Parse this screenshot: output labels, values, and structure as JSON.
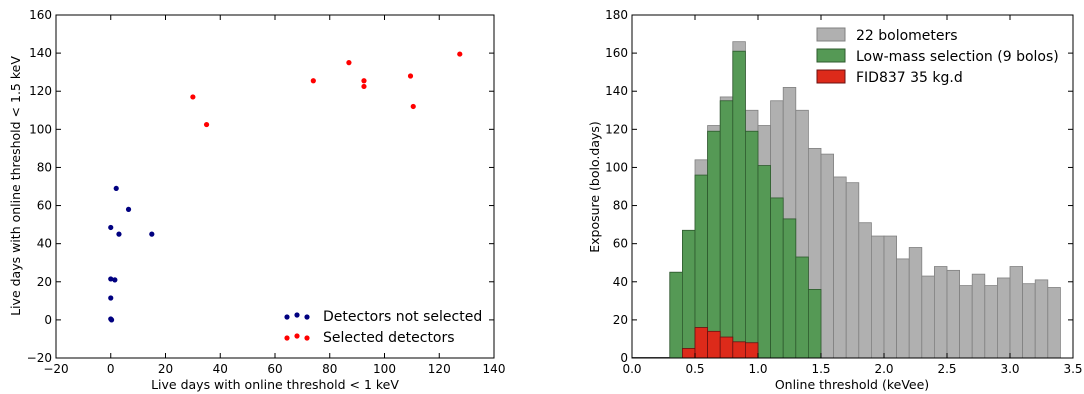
{
  "chart_data": [
    {
      "type": "scatter",
      "xlabel": "Live days with online threshold < 1 keV",
      "ylabel": "Live days with online threshold < 1.5 keV",
      "xlim": [
        -20,
        140
      ],
      "ylim": [
        -20,
        160
      ],
      "xticks": [
        -20,
        0,
        20,
        40,
        60,
        80,
        100,
        120,
        140
      ],
      "yticks": [
        -20,
        0,
        20,
        40,
        60,
        80,
        100,
        120,
        140,
        160
      ],
      "xtick_labels": [
        "−20",
        "0",
        "20",
        "40",
        "60",
        "80",
        "100",
        "120",
        "140"
      ],
      "ytick_labels": [
        "−20",
        "0",
        "20",
        "40",
        "60",
        "80",
        "100",
        "120",
        "140",
        "160"
      ],
      "legend_position": "bottom-right",
      "series": [
        {
          "name": "Detectors not selected",
          "color": "#000080",
          "points": [
            [
              2,
              69
            ],
            [
              6.5,
              58
            ],
            [
              0,
              48.5
            ],
            [
              3,
              45
            ],
            [
              15,
              45
            ],
            [
              0,
              21.5
            ],
            [
              1.5,
              21
            ],
            [
              0,
              11.5
            ],
            [
              0,
              0.5
            ],
            [
              0.3,
              0
            ]
          ]
        },
        {
          "name": "Selected detectors",
          "color": "#ff0000",
          "points": [
            [
              30,
              117
            ],
            [
              35,
              102.5
            ],
            [
              74,
              125.5
            ],
            [
              87,
              135
            ],
            [
              92.5,
              125.5
            ],
            [
              92.5,
              122.5
            ],
            [
              109.5,
              128
            ],
            [
              110.5,
              112
            ],
            [
              127.5,
              139.5
            ]
          ]
        }
      ]
    },
    {
      "type": "histogram",
      "xlabel": "Online threshold (keVee)",
      "ylabel": "Exposure (bolo.days)",
      "xlim": [
        0.0,
        3.5
      ],
      "ylim": [
        0,
        180
      ],
      "xticks": [
        0.0,
        0.5,
        1.0,
        1.5,
        2.0,
        2.5,
        3.0,
        3.5
      ],
      "yticks": [
        0,
        20,
        40,
        60,
        80,
        100,
        120,
        140,
        160,
        180
      ],
      "xtick_labels": [
        "0.0",
        "0.5",
        "1.0",
        "1.5",
        "2.0",
        "2.5",
        "3.0",
        "3.5"
      ],
      "ytick_labels": [
        "0",
        "20",
        "40",
        "60",
        "80",
        "100",
        "120",
        "140",
        "160",
        "180"
      ],
      "bin_width": 0.1,
      "legend_position": "top-right",
      "series": [
        {
          "name": "22 bolometers",
          "color": "#b0b0b0",
          "edge": "#808080",
          "x_start": 0.3,
          "values": [
            45,
            67,
            104,
            122,
            137,
            166,
            130,
            122,
            135,
            142,
            130,
            110,
            107,
            95,
            92,
            71,
            64,
            64,
            52,
            58,
            43,
            48,
            46,
            38,
            44,
            38,
            42,
            48,
            39,
            41,
            37
          ]
        },
        {
          "name": "Low-mass selection (9 bolos)",
          "color": "#559955",
          "edge": "#2d5a2d",
          "x_start": 0.3,
          "values": [
            45,
            67,
            96,
            119,
            135,
            161,
            119,
            101,
            84,
            73,
            53,
            36
          ]
        },
        {
          "name": "FID837 35 kg.d",
          "color": "#dd2a1a",
          "edge": "#6a1010",
          "x_start": 0.4,
          "values": [
            5,
            16,
            14,
            11,
            8.5,
            8
          ]
        }
      ]
    }
  ]
}
